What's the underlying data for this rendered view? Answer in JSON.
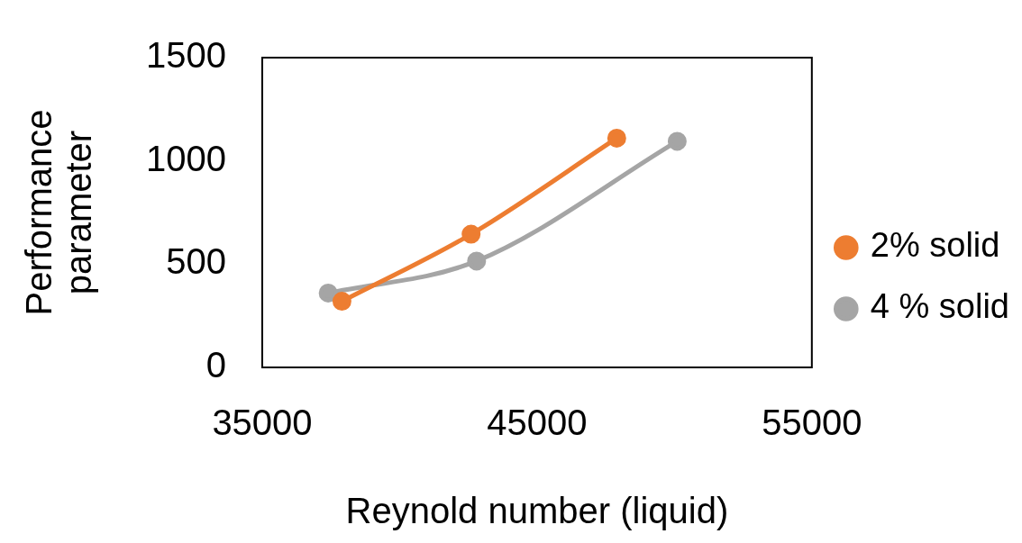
{
  "chart_data": {
    "type": "line",
    "xlabel": "Reynold number (liquid)",
    "ylabel": "Performance parameter",
    "xlim": [
      35000,
      55000
    ],
    "xticks": [
      35000,
      45000,
      55000
    ],
    "ylim": [
      0,
      1500
    ],
    "yticks": [
      0,
      500,
      1000,
      1500
    ],
    "grid": false,
    "legend": "right",
    "marker": "circle",
    "line_style": "solid",
    "series": [
      {
        "name": "2% solid",
        "color": "#ed7d31",
        "x": [
          37900,
          42600,
          47900
        ],
        "values": [
          320,
          645,
          1110
        ]
      },
      {
        "name": "4 % solid",
        "color": "#a5a5a5",
        "x": [
          37400,
          42800,
          50100
        ],
        "values": [
          360,
          515,
          1095
        ]
      }
    ]
  }
}
